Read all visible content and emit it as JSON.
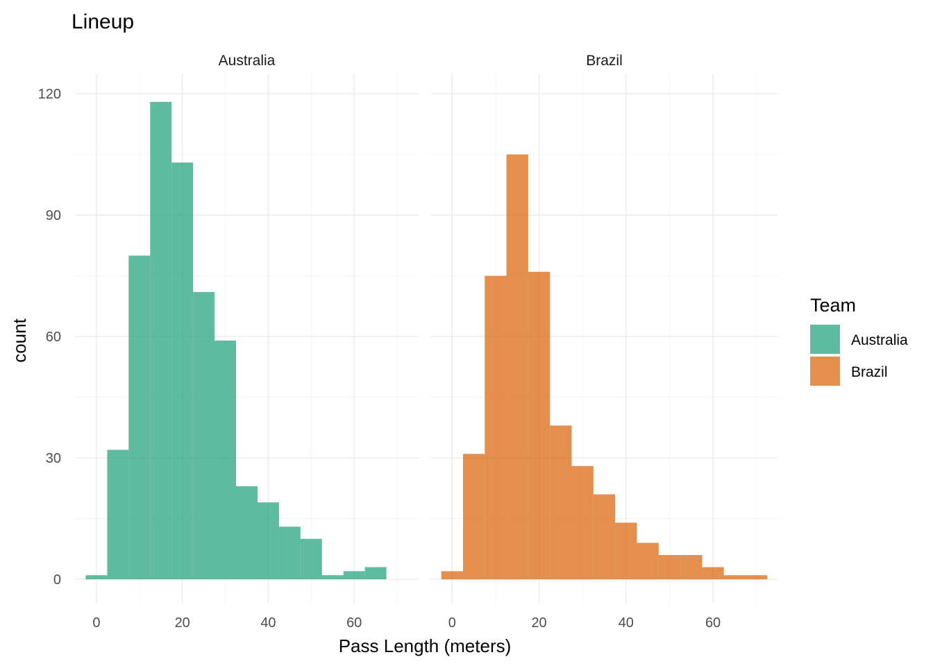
{
  "chart_data": {
    "type": "bar",
    "title": "Lineup",
    "xlabel": "Pass Length (meters)",
    "ylabel": "count",
    "xlim": [
      -5,
      75
    ],
    "ylim": [
      -6,
      125
    ],
    "x_ticks": [
      0,
      20,
      40,
      60
    ],
    "y_ticks": [
      0,
      30,
      60,
      90,
      120
    ],
    "bin_width": 5,
    "grid": true,
    "legend": {
      "title": "Team",
      "position": "right"
    },
    "panels": [
      {
        "name": "Australia",
        "color": "#1B9E77",
        "bins": [
          {
            "x0": -2.5,
            "x1": 2.5,
            "count": 1
          },
          {
            "x0": 2.5,
            "x1": 7.5,
            "count": 32
          },
          {
            "x0": 7.5,
            "x1": 12.5,
            "count": 80
          },
          {
            "x0": 12.5,
            "x1": 17.5,
            "count": 118
          },
          {
            "x0": 17.5,
            "x1": 22.5,
            "count": 103
          },
          {
            "x0": 22.5,
            "x1": 27.5,
            "count": 71
          },
          {
            "x0": 27.5,
            "x1": 32.5,
            "count": 59
          },
          {
            "x0": 32.5,
            "x1": 37.5,
            "count": 23
          },
          {
            "x0": 37.5,
            "x1": 42.5,
            "count": 19
          },
          {
            "x0": 42.5,
            "x1": 47.5,
            "count": 13
          },
          {
            "x0": 47.5,
            "x1": 52.5,
            "count": 10
          },
          {
            "x0": 52.5,
            "x1": 57.5,
            "count": 1
          },
          {
            "x0": 57.5,
            "x1": 62.5,
            "count": 2
          },
          {
            "x0": 62.5,
            "x1": 67.5,
            "count": 3
          }
        ]
      },
      {
        "name": "Brazil",
        "color": "#D95F02",
        "bins": [
          {
            "x0": -2.5,
            "x1": 2.5,
            "count": 2
          },
          {
            "x0": 2.5,
            "x1": 7.5,
            "count": 31
          },
          {
            "x0": 7.5,
            "x1": 12.5,
            "count": 75
          },
          {
            "x0": 12.5,
            "x1": 17.5,
            "count": 105
          },
          {
            "x0": 17.5,
            "x1": 22.5,
            "count": 76
          },
          {
            "x0": 22.5,
            "x1": 27.5,
            "count": 38
          },
          {
            "x0": 27.5,
            "x1": 32.5,
            "count": 28
          },
          {
            "x0": 32.5,
            "x1": 37.5,
            "count": 21
          },
          {
            "x0": 37.5,
            "x1": 42.5,
            "count": 14
          },
          {
            "x0": 42.5,
            "x1": 47.5,
            "count": 9
          },
          {
            "x0": 47.5,
            "x1": 52.5,
            "count": 6
          },
          {
            "x0": 52.5,
            "x1": 57.5,
            "count": 6
          },
          {
            "x0": 57.5,
            "x1": 62.5,
            "count": 3
          },
          {
            "x0": 62.5,
            "x1": 67.5,
            "count": 1
          },
          {
            "x0": 67.5,
            "x1": 72.5,
            "count": 1
          }
        ]
      }
    ]
  }
}
